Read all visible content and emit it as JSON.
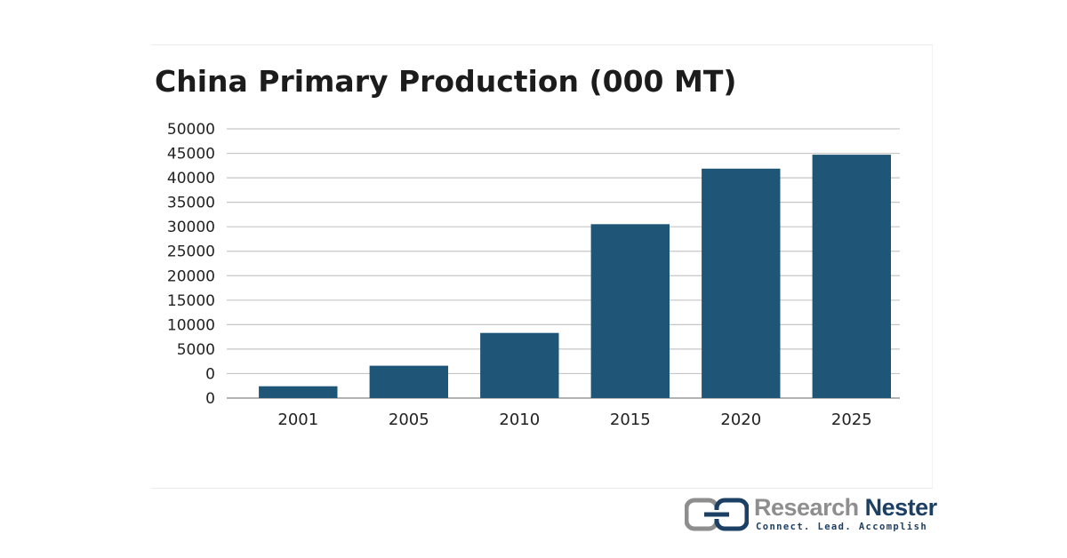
{
  "chart_data": {
    "type": "bar",
    "title": "China Primary Production (000 MT)",
    "xlabel": "",
    "ylabel": "",
    "categories": [
      "2001",
      "2005",
      "2010",
      "2015",
      "2020",
      "2025"
    ],
    "values": [
      2200,
      6000,
      12100,
      32300,
      42600,
      45200
    ],
    "ylim": [
      0,
      50000
    ],
    "y_tick_labels": [
      "0",
      "0",
      "5000",
      "10000",
      "15000",
      "20000",
      "25000",
      "30000",
      "35000",
      "40000",
      "45000",
      "50000"
    ],
    "bar_color": "#1f5677",
    "grid": true,
    "legend": "none"
  },
  "branding": {
    "name_part_1": "Research ",
    "name_part_2": "Nester",
    "tagline": "Connect. Lead. Accomplish",
    "colors": {
      "primary": "#1e3f64",
      "secondary": "#8e8e8e"
    },
    "icon": "research-nester-logo-icon"
  }
}
